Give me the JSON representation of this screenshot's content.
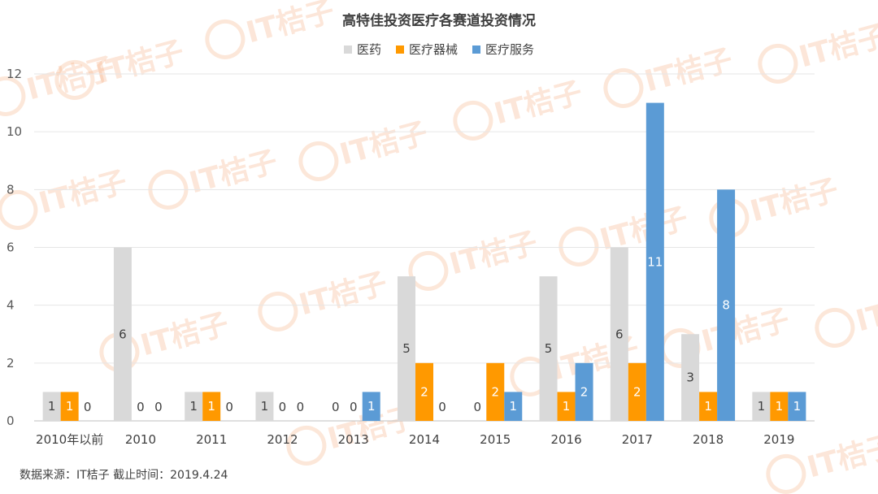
{
  "source_text": "数据来源：IT桔子  截止时间：2019.4.24",
  "watermark_text": "IT桔子",
  "chart_data": {
    "type": "bar",
    "title": "高特佳投资医疗各赛道投资情况",
    "categories": [
      "2010年以前",
      "2010",
      "2011",
      "2012",
      "2013",
      "2014",
      "2015",
      "2016",
      "2017",
      "2018",
      "2019"
    ],
    "series": [
      {
        "name": "医药",
        "color": "#d9d9d9",
        "label_color": "#404040",
        "values": [
          1,
          6,
          1,
          1,
          0,
          5,
          0,
          5,
          6,
          3,
          1
        ]
      },
      {
        "name": "医疗器械",
        "color": "#ff9900",
        "label_color": "#ffffff",
        "values": [
          1,
          0,
          1,
          0,
          0,
          2,
          2,
          1,
          2,
          1,
          1
        ]
      },
      {
        "name": "医疗服务",
        "color": "#5b9bd5",
        "label_color": "#ffffff",
        "values": [
          0,
          0,
          0,
          0,
          1,
          0,
          1,
          2,
          11,
          8,
          1
        ]
      }
    ],
    "ylim": [
      0,
      12
    ],
    "yticks": [
      0,
      2,
      4,
      6,
      8,
      10,
      12
    ],
    "grid": true,
    "legend_position": "top-center",
    "xlabel": "",
    "ylabel": ""
  }
}
